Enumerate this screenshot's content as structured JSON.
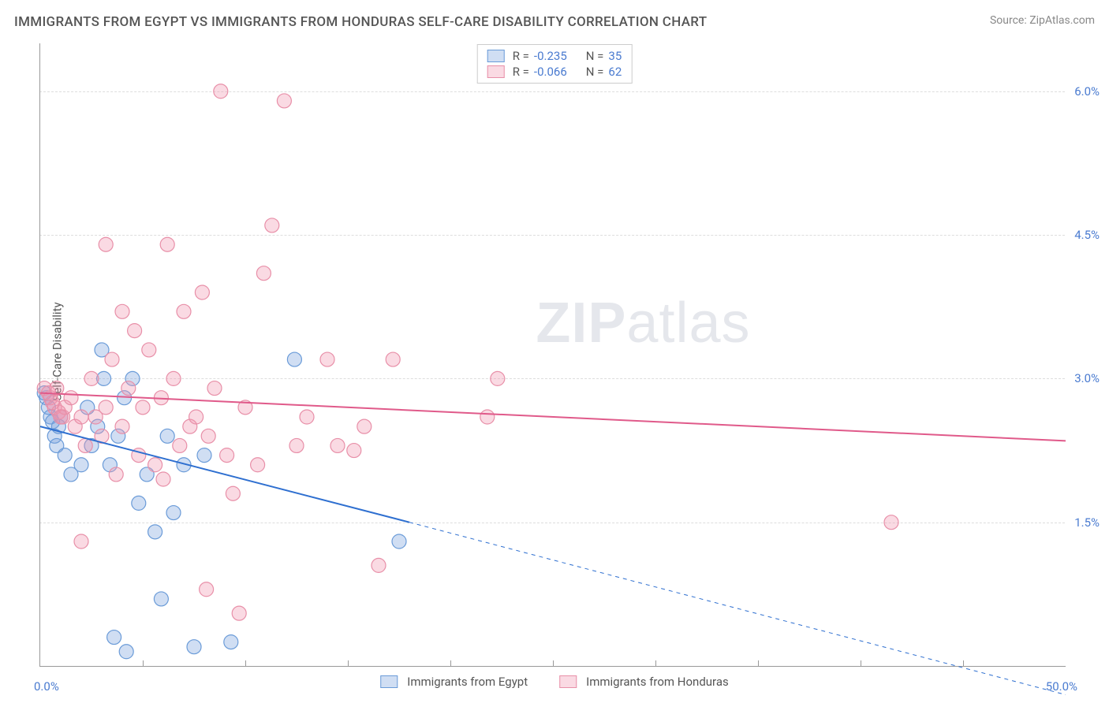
{
  "title": "IMMIGRANTS FROM EGYPT VS IMMIGRANTS FROM HONDURAS SELF-CARE DISABILITY CORRELATION CHART",
  "source": "Source: ZipAtlas.com",
  "watermark_bold": "ZIP",
  "watermark_rest": "atlas",
  "ylabel": "Self-Care Disability",
  "series": [
    {
      "key": "egypt",
      "label": "Immigrants from Egypt",
      "fill": "rgba(120,160,220,0.35)",
      "stroke": "#6a9bd8",
      "line_color": "#2e6fd0",
      "r_label": "R =",
      "r_value": "-0.235",
      "n_label": "N =",
      "n_value": "35",
      "trend": {
        "x1": 0,
        "y1": 2.5,
        "x2": 18,
        "y2": 1.5,
        "x2_dash": 50,
        "y2_dash": -0.3
      },
      "points": [
        [
          0.3,
          2.8
        ],
        [
          0.4,
          2.7
        ],
        [
          0.5,
          2.6
        ],
        [
          0.6,
          2.55
        ],
        [
          0.2,
          2.85
        ],
        [
          0.7,
          2.4
        ],
        [
          0.8,
          2.3
        ],
        [
          0.9,
          2.5
        ],
        [
          1.0,
          2.6
        ],
        [
          1.2,
          2.2
        ],
        [
          1.5,
          2.0
        ],
        [
          2.0,
          2.1
        ],
        [
          2.3,
          2.7
        ],
        [
          2.5,
          2.3
        ],
        [
          2.8,
          2.5
        ],
        [
          3.0,
          3.3
        ],
        [
          3.1,
          3.0
        ],
        [
          3.4,
          2.1
        ],
        [
          3.8,
          2.4
        ],
        [
          4.1,
          2.8
        ],
        [
          4.5,
          3.0
        ],
        [
          4.8,
          1.7
        ],
        [
          5.2,
          2.0
        ],
        [
          5.6,
          1.4
        ],
        [
          5.9,
          0.7
        ],
        [
          6.2,
          2.4
        ],
        [
          6.5,
          1.6
        ],
        [
          7.0,
          2.1
        ],
        [
          7.5,
          0.2
        ],
        [
          4.2,
          0.15
        ],
        [
          8.0,
          2.2
        ],
        [
          9.3,
          0.25
        ],
        [
          12.4,
          3.2
        ],
        [
          17.5,
          1.3
        ],
        [
          3.6,
          0.3
        ]
      ]
    },
    {
      "key": "honduras",
      "label": "Immigrants from Honduras",
      "fill": "rgba(240,150,175,0.35)",
      "stroke": "#e88fa8",
      "line_color": "#e05a8a",
      "r_label": "R =",
      "r_value": "-0.066",
      "n_label": "N =",
      "n_value": "62",
      "trend": {
        "x1": 0,
        "y1": 2.85,
        "x2": 50,
        "y2": 2.35
      },
      "points": [
        [
          0.2,
          2.9
        ],
        [
          0.4,
          2.85
        ],
        [
          0.5,
          2.8
        ],
        [
          0.6,
          2.75
        ],
        [
          0.7,
          2.7
        ],
        [
          0.9,
          2.65
        ],
        [
          1.1,
          2.6
        ],
        [
          1.2,
          2.7
        ],
        [
          1.5,
          2.8
        ],
        [
          1.7,
          2.5
        ],
        [
          2.0,
          2.6
        ],
        [
          2.2,
          2.3
        ],
        [
          2.5,
          3.0
        ],
        [
          2.7,
          2.6
        ],
        [
          3.0,
          2.4
        ],
        [
          3.2,
          2.7
        ],
        [
          3.5,
          3.2
        ],
        [
          3.7,
          2.0
        ],
        [
          4.0,
          2.5
        ],
        [
          4.3,
          2.9
        ],
        [
          4.6,
          3.5
        ],
        [
          4.8,
          2.2
        ],
        [
          5.0,
          2.7
        ],
        [
          5.3,
          3.3
        ],
        [
          5.6,
          2.1
        ],
        [
          5.9,
          2.8
        ],
        [
          6.2,
          4.4
        ],
        [
          6.5,
          3.0
        ],
        [
          6.8,
          2.3
        ],
        [
          7.0,
          3.7
        ],
        [
          7.3,
          2.5
        ],
        [
          7.6,
          2.6
        ],
        [
          7.9,
          3.9
        ],
        [
          8.2,
          2.4
        ],
        [
          8.5,
          2.9
        ],
        [
          8.8,
          6.0
        ],
        [
          9.1,
          2.2
        ],
        [
          9.4,
          1.8
        ],
        [
          9.7,
          0.55
        ],
        [
          10.0,
          2.7
        ],
        [
          8.1,
          0.8
        ],
        [
          10.6,
          2.1
        ],
        [
          10.9,
          4.1
        ],
        [
          11.3,
          4.6
        ],
        [
          11.9,
          5.9
        ],
        [
          12.5,
          2.3
        ],
        [
          13.0,
          2.6
        ],
        [
          14.0,
          3.2
        ],
        [
          14.5,
          2.3
        ],
        [
          15.3,
          2.25
        ],
        [
          15.8,
          2.5
        ],
        [
          16.5,
          1.05
        ],
        [
          17.2,
          3.2
        ],
        [
          21.8,
          2.6
        ],
        [
          22.3,
          3.0
        ],
        [
          41.5,
          1.5
        ],
        [
          3.2,
          4.4
        ],
        [
          4.0,
          3.7
        ],
        [
          6.0,
          1.95
        ],
        [
          2.0,
          1.3
        ],
        [
          1.0,
          2.6
        ],
        [
          0.8,
          2.9
        ]
      ]
    }
  ],
  "chart": {
    "type": "scatter",
    "xlim": [
      0,
      50
    ],
    "ylim": [
      0,
      6.5
    ],
    "xticks_minor": [
      5,
      10,
      15,
      20,
      25,
      30,
      35,
      40,
      45
    ],
    "yticks": [
      {
        "v": 1.5,
        "label": "1.5%"
      },
      {
        "v": 3.0,
        "label": "3.0%"
      },
      {
        "v": 4.5,
        "label": "4.5%"
      },
      {
        "v": 6.0,
        "label": "6.0%"
      }
    ],
    "xlabel_min": "0.0%",
    "xlabel_max": "50.0%",
    "marker_radius": 9,
    "marker_stroke_width": 1.2,
    "trend_line_width": 2,
    "background_color": "#ffffff",
    "grid_color": "#dddddd",
    "axis_color": "#999999",
    "title_fontsize": 17,
    "label_fontsize": 15,
    "tick_color": "#4a7bd0"
  }
}
